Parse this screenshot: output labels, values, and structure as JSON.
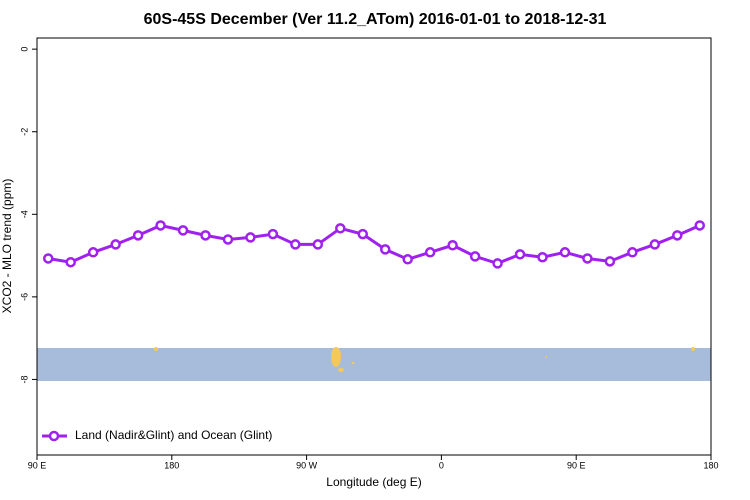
{
  "chart_data": {
    "type": "line",
    "title": "60S-45S December (Ver 11.2_ATom)   2016-01-01 to 2018-12-31",
    "x_label": "Longitude (deg E)",
    "y_label": "XCO2 - MLO trend (ppm)",
    "x": [
      97.5,
      112.5,
      127.5,
      142.5,
      157.5,
      172.5,
      187.5,
      202.5,
      217.5,
      232.5,
      247.5,
      262.5,
      277.5,
      292.5,
      307.5,
      322.5,
      337.5,
      352.5,
      367.5,
      382.5,
      397.5,
      412.5,
      427.5,
      442.5,
      457.5,
      472.5,
      487.5,
      502.5,
      517.5,
      532.5
    ],
    "series": [
      {
        "name": "Land (Nadir&Glint) and Ocean (Glint)",
        "color": "#a020f0",
        "values": [
          -5.07,
          -5.16,
          -4.92,
          -4.73,
          -4.51,
          -4.27,
          -4.39,
          -4.51,
          -4.61,
          -4.56,
          -4.48,
          -4.73,
          -4.73,
          -4.34,
          -4.48,
          -4.85,
          -5.09,
          -4.92,
          -4.75,
          -5.02,
          -5.19,
          -4.97,
          -5.04,
          -4.92,
          -5.07,
          -5.14,
          -4.92,
          -4.73,
          -4.51,
          -4.27
        ]
      }
    ],
    "xlim": [
      90,
      540
    ],
    "xticks": [
      {
        "value": 90,
        "label": "90 E"
      },
      {
        "value": 180,
        "label": "180"
      },
      {
        "value": 270,
        "label": "90 W"
      },
      {
        "value": 360,
        "label": "0"
      },
      {
        "value": 450,
        "label": "90 E"
      },
      {
        "value": 540,
        "label": "180"
      }
    ],
    "ylim": [
      -9.83,
      0.27
    ],
    "yticks": [
      0,
      -2,
      -4,
      -6,
      -8
    ],
    "legend": "bottom-left"
  }
}
